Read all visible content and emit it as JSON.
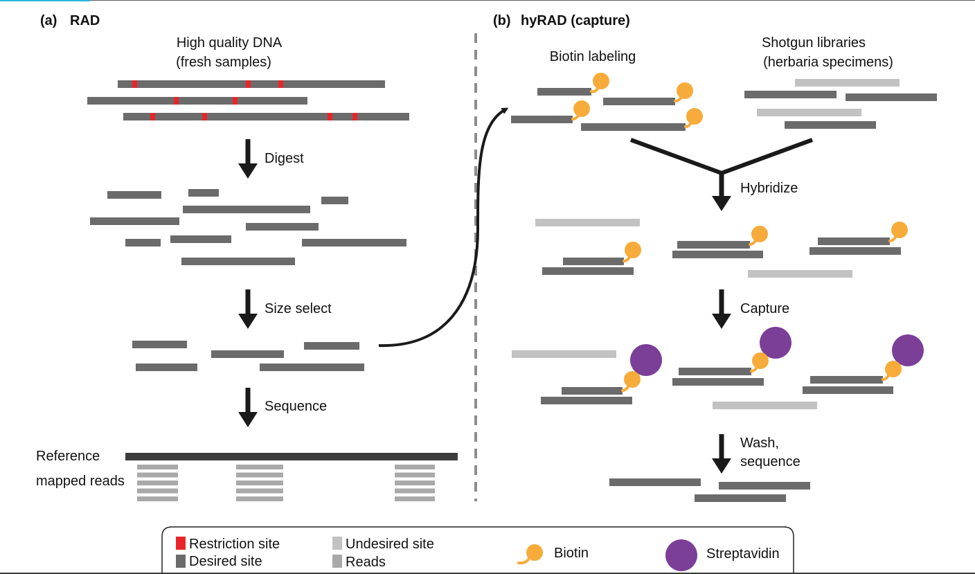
{
  "panel_a": {
    "label": "(a)",
    "title": "RAD",
    "source_line1": "High quality DNA",
    "source_line2": "(fresh samples)",
    "step_digest": "Digest",
    "step_size_select": "Size select",
    "step_sequence": "Sequence",
    "reference_label": "Reference",
    "mapped_reads_label": "mapped reads"
  },
  "panel_b": {
    "label": "(b)",
    "title": "hyRAD (capture)",
    "biotin_labeling": "Biotin labeling",
    "shotgun_line1": "Shotgun libraries",
    "shotgun_line2": "(herbaria specimens)",
    "step_hybridize": "Hybridize",
    "step_capture": "Capture",
    "step_wash_line1": "Wash,",
    "step_wash_line2": "sequence"
  },
  "legend": {
    "restriction_site": "Restriction site",
    "desired_site": "Desired site",
    "undesired_site": "Undesired site",
    "reads": "Reads",
    "biotin": "Biotin",
    "streptavidin": "Streptavidin"
  },
  "colors": {
    "restriction": "#e8262a",
    "desired": "#6b6b6b",
    "undesired": "#c2c2c2",
    "reads": "#a9a9a9",
    "reference": "#3d3d3d",
    "biotin": "#f7ab3a",
    "streptavidin": "#7b3f98",
    "arrow": "#1a1a1a"
  }
}
